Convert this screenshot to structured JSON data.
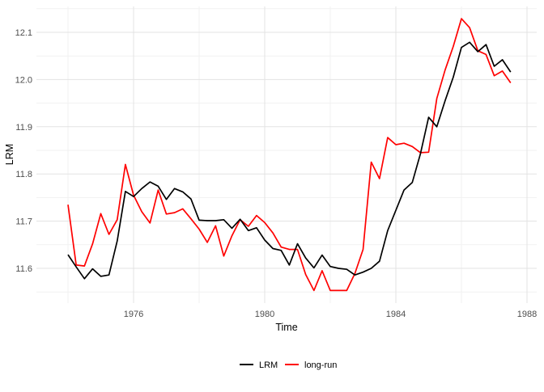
{
  "axes": {
    "x_title": "Time",
    "y_title": "LRM",
    "x_tick_labels": [
      "1976",
      "1980",
      "1984",
      "1988"
    ],
    "y_tick_labels": [
      "11.6",
      "11.7",
      "11.8",
      "11.9",
      "12.0",
      "12.1"
    ]
  },
  "legend": {
    "items": [
      {
        "label": "LRM",
        "color": "#000000"
      },
      {
        "label": "long-run",
        "color": "#ff0000"
      }
    ]
  },
  "colors": {
    "background": "#ffffff",
    "grid_major": "#e3e3e3",
    "grid_minor": "#f1f1f1",
    "axis_text": "#4d4d4d",
    "series_lrm": "#000000",
    "series_long_run": "#ff0000"
  },
  "chart_data": {
    "type": "line",
    "title": "",
    "xlabel": "Time",
    "ylabel": "LRM",
    "grid": true,
    "legend_position": "bottom",
    "xlim": [
      1973.0,
      1988.3
    ],
    "ylim": [
      11.525,
      12.155
    ],
    "x_start": 1974.0,
    "x_step": 0.25,
    "x_ticks": [
      1976,
      1980,
      1984,
      1988
    ],
    "x_minor_ticks": [
      1974,
      1978,
      1982,
      1986
    ],
    "y_ticks": [
      11.6,
      11.7,
      11.8,
      11.9,
      12.0,
      12.1
    ],
    "y_minor_ticks": [
      11.55,
      11.65,
      11.75,
      11.85,
      11.95,
      12.05,
      12.15
    ],
    "series": [
      {
        "name": "LRM",
        "color": "#000000",
        "values": [
          11.629,
          11.603,
          11.578,
          11.599,
          11.583,
          11.586,
          11.658,
          11.763,
          11.752,
          11.769,
          11.783,
          11.774,
          11.746,
          11.769,
          11.762,
          11.747,
          11.702,
          11.701,
          11.701,
          11.703,
          11.685,
          11.704,
          11.68,
          11.686,
          11.66,
          11.642,
          11.638,
          11.607,
          11.652,
          11.622,
          11.601,
          11.628,
          11.604,
          11.6,
          11.598,
          11.586,
          11.592,
          11.6,
          11.615,
          11.68,
          11.723,
          11.766,
          11.782,
          11.843,
          11.92,
          11.9,
          11.955,
          12.005,
          12.068,
          12.079,
          12.059,
          12.074,
          12.028,
          12.042,
          12.016
        ]
      },
      {
        "name": "long-run",
        "color": "#ff0000",
        "values": [
          11.735,
          11.607,
          11.605,
          11.652,
          11.716,
          11.672,
          11.703,
          11.82,
          11.755,
          11.72,
          11.696,
          11.766,
          11.715,
          11.718,
          11.726,
          11.705,
          11.683,
          11.655,
          11.69,
          11.626,
          11.669,
          11.703,
          11.689,
          11.712,
          11.697,
          11.675,
          11.645,
          11.64,
          11.64,
          11.587,
          11.553,
          11.595,
          11.553,
          11.553,
          11.553,
          11.589,
          11.64,
          11.825,
          11.79,
          11.877,
          11.862,
          11.865,
          11.858,
          11.845,
          11.846,
          11.96,
          12.02,
          12.07,
          12.129,
          12.11,
          12.061,
          12.053,
          12.008,
          12.018,
          11.993
        ]
      }
    ]
  }
}
